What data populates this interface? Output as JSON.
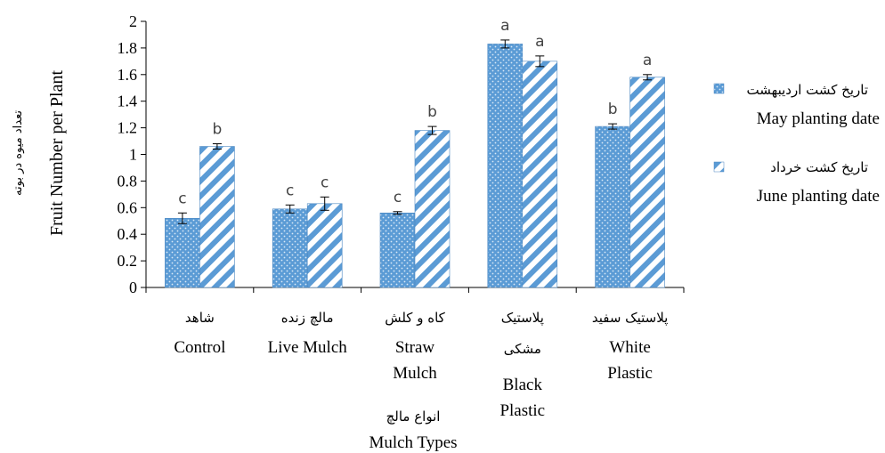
{
  "chart_data": {
    "type": "bar",
    "ylabel": "Fruit Number per Plant",
    "ylabel_fa": "تعداد میوه در بوته",
    "xlabel": "Mulch Types",
    "xlabel_fa": "انواع مالچ",
    "ylim": [
      0,
      2
    ],
    "yticks": [
      "0",
      "0.2",
      "0.4",
      "0.6",
      "0.8",
      "1",
      "1.2",
      "1.4",
      "1.6",
      "1.8",
      "2"
    ],
    "grid": false,
    "legend_position": "right",
    "categories": [
      {
        "fa": "شاهد",
        "en": [
          "Control"
        ]
      },
      {
        "fa": "مالچ زنده",
        "en": [
          "Live Mulch"
        ]
      },
      {
        "fa": "کاه و کلش",
        "en": [
          "Straw",
          "Mulch"
        ]
      },
      {
        "fa": "پلاستیک",
        "fa2": "مشکی",
        "en": [
          "Black",
          "Plastic"
        ]
      },
      {
        "fa": "پلاستیک سفید",
        "en": [
          "White",
          "Plastic"
        ]
      }
    ],
    "series": [
      {
        "name": "May planting date",
        "name_fa": "تاریخ کشت اردیبهشت",
        "color": "#5B9BD5",
        "pattern": "dots",
        "values": [
          0.52,
          0.59,
          0.56,
          1.83,
          1.21
        ],
        "errors": [
          0.04,
          0.03,
          0.01,
          0.03,
          0.02
        ],
        "letters": [
          "c",
          "c",
          "c",
          "a",
          "b"
        ]
      },
      {
        "name": "June planting date",
        "name_fa": "تاریخ کشت خرداد",
        "color": "#5B9BD5",
        "pattern": "stripes",
        "values": [
          1.06,
          0.63,
          1.18,
          1.7,
          1.58
        ],
        "errors": [
          0.02,
          0.05,
          0.03,
          0.04,
          0.02
        ],
        "letters": [
          "b",
          "c",
          "b",
          "a",
          "a"
        ]
      }
    ]
  }
}
